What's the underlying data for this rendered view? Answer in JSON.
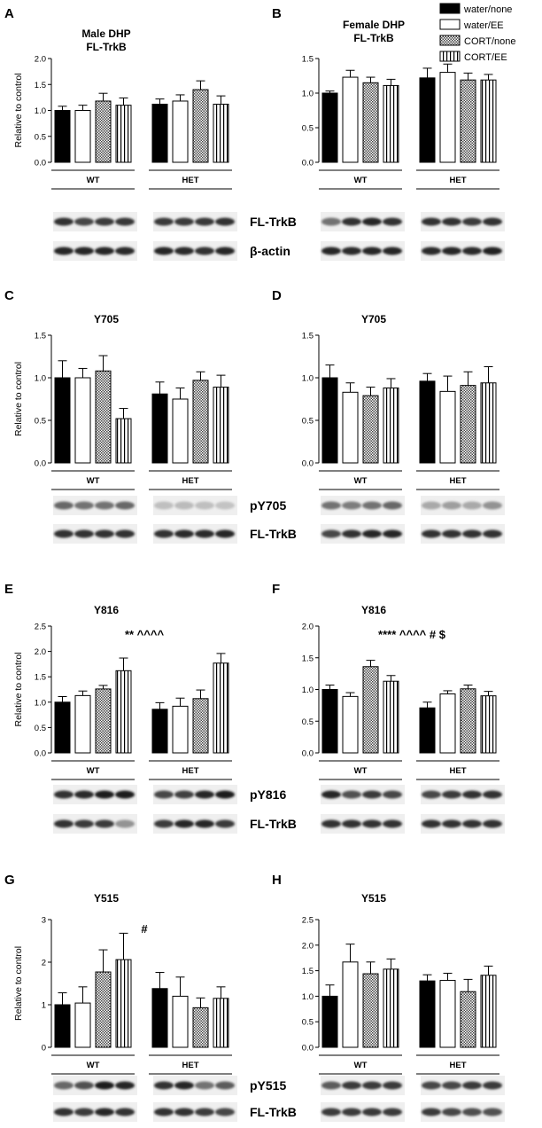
{
  "legend": {
    "items": [
      {
        "label": "water/none",
        "pattern": "solid"
      },
      {
        "label": "water/EE",
        "pattern": "open"
      },
      {
        "label": "CORT/none",
        "pattern": "check"
      },
      {
        "label": "CORT/EE",
        "pattern": "vstripe"
      }
    ]
  },
  "chart_data": [
    {
      "type": "bar",
      "panel": "A",
      "title_lines": [
        "Male DHP",
        "FL-TrkB"
      ],
      "ylabel": "Relative to control",
      "ylim": [
        0,
        2.0
      ],
      "yticks": [
        "0.0",
        "0.5",
        "1.0",
        "1.5",
        "2.0"
      ],
      "groups": [
        "WT",
        "HET"
      ],
      "series": [
        {
          "name": "water/none",
          "values": [
            1.0,
            1.12
          ],
          "errors": [
            0.08,
            0.1
          ]
        },
        {
          "name": "water/EE",
          "values": [
            1.0,
            1.18
          ],
          "errors": [
            0.1,
            0.12
          ]
        },
        {
          "name": "CORT/none",
          "values": [
            1.18,
            1.4
          ],
          "errors": [
            0.15,
            0.17
          ]
        },
        {
          "name": "CORT/EE",
          "values": [
            1.1,
            1.12
          ],
          "errors": [
            0.14,
            0.16
          ]
        }
      ],
      "annotation": "",
      "blot_labels": [
        "FL-TrkB",
        "β-actin"
      ]
    },
    {
      "type": "bar",
      "panel": "B",
      "title_lines": [
        "Female DHP",
        "FL-TrkB"
      ],
      "ylabel": "",
      "ylim": [
        0,
        1.5
      ],
      "yticks": [
        "0.0",
        "0.5",
        "1.0",
        "1.5"
      ],
      "groups": [
        "WT",
        "HET"
      ],
      "series": [
        {
          "name": "water/none",
          "values": [
            1.0,
            1.22
          ],
          "errors": [
            0.03,
            0.14
          ]
        },
        {
          "name": "water/EE",
          "values": [
            1.23,
            1.3
          ],
          "errors": [
            0.1,
            0.12
          ]
        },
        {
          "name": "CORT/none",
          "values": [
            1.15,
            1.19
          ],
          "errors": [
            0.08,
            0.1
          ]
        },
        {
          "name": "CORT/EE",
          "values": [
            1.11,
            1.19
          ],
          "errors": [
            0.09,
            0.08
          ]
        }
      ],
      "annotation": "",
      "blot_labels": []
    },
    {
      "type": "bar",
      "panel": "C",
      "title_lines": [
        "Y705"
      ],
      "ylabel": "Relative to control",
      "ylim": [
        0,
        1.5
      ],
      "yticks": [
        "0.0",
        "0.5",
        "1.0",
        "1.5"
      ],
      "groups": [
        "WT",
        "HET"
      ],
      "series": [
        {
          "name": "water/none",
          "values": [
            1.0,
            0.81
          ],
          "errors": [
            0.2,
            0.14
          ]
        },
        {
          "name": "water/EE",
          "values": [
            1.0,
            0.75
          ],
          "errors": [
            0.11,
            0.13
          ]
        },
        {
          "name": "CORT/none",
          "values": [
            1.08,
            0.97
          ],
          "errors": [
            0.18,
            0.1
          ]
        },
        {
          "name": "CORT/EE",
          "values": [
            0.52,
            0.89
          ],
          "errors": [
            0.12,
            0.14
          ]
        }
      ],
      "annotation": "",
      "blot_labels": [
        "pY705",
        "FL-TrkB"
      ]
    },
    {
      "type": "bar",
      "panel": "D",
      "title_lines": [
        "Y705"
      ],
      "ylabel": "",
      "ylim": [
        0,
        1.5
      ],
      "yticks": [
        "0.0",
        "0.5",
        "1.0",
        "1.5"
      ],
      "groups": [
        "WT",
        "HET"
      ],
      "series": [
        {
          "name": "water/none",
          "values": [
            1.0,
            0.96
          ],
          "errors": [
            0.15,
            0.09
          ]
        },
        {
          "name": "water/EE",
          "values": [
            0.83,
            0.84
          ],
          "errors": [
            0.11,
            0.18
          ]
        },
        {
          "name": "CORT/none",
          "values": [
            0.79,
            0.91
          ],
          "errors": [
            0.1,
            0.16
          ]
        },
        {
          "name": "CORT/EE",
          "values": [
            0.88,
            0.94
          ],
          "errors": [
            0.11,
            0.19
          ]
        }
      ],
      "annotation": "",
      "blot_labels": []
    },
    {
      "type": "bar",
      "panel": "E",
      "title_lines": [
        "Y816"
      ],
      "ylabel": "Relative to control",
      "ylim": [
        0,
        2.5
      ],
      "yticks": [
        "0.0",
        "0.5",
        "1.0",
        "1.5",
        "2.0",
        "2.5"
      ],
      "groups": [
        "WT",
        "HET"
      ],
      "series": [
        {
          "name": "water/none",
          "values": [
            1.0,
            0.86
          ],
          "errors": [
            0.11,
            0.13
          ]
        },
        {
          "name": "water/EE",
          "values": [
            1.13,
            0.92
          ],
          "errors": [
            0.09,
            0.16
          ]
        },
        {
          "name": "CORT/none",
          "values": [
            1.26,
            1.07
          ],
          "errors": [
            0.07,
            0.17
          ]
        },
        {
          "name": "CORT/EE",
          "values": [
            1.62,
            1.77
          ],
          "errors": [
            0.25,
            0.19
          ]
        }
      ],
      "annotation": "** ^^^^",
      "blot_labels": [
        "pY816",
        "FL-TrkB"
      ]
    },
    {
      "type": "bar",
      "panel": "F",
      "title_lines": [
        "Y816"
      ],
      "ylabel": "",
      "ylim": [
        0,
        2.0
      ],
      "yticks": [
        "0.0",
        "0.5",
        "1.0",
        "1.5",
        "2.0"
      ],
      "groups": [
        "WT",
        "HET"
      ],
      "series": [
        {
          "name": "water/none",
          "values": [
            1.0,
            0.71
          ],
          "errors": [
            0.07,
            0.09
          ]
        },
        {
          "name": "water/EE",
          "values": [
            0.89,
            0.93
          ],
          "errors": [
            0.06,
            0.05
          ]
        },
        {
          "name": "CORT/none",
          "values": [
            1.36,
            1.01
          ],
          "errors": [
            0.1,
            0.06
          ]
        },
        {
          "name": "CORT/EE",
          "values": [
            1.13,
            0.9
          ],
          "errors": [
            0.09,
            0.07
          ]
        }
      ],
      "annotation": "**** ^^^^  #  $",
      "blot_labels": []
    },
    {
      "type": "bar",
      "panel": "G",
      "title_lines": [
        "Y515"
      ],
      "ylabel": "Relative to control",
      "ylim": [
        0,
        3
      ],
      "yticks": [
        "0",
        "1",
        "2",
        "3"
      ],
      "groups": [
        "WT",
        "HET"
      ],
      "series": [
        {
          "name": "water/none",
          "values": [
            1.0,
            1.38
          ],
          "errors": [
            0.28,
            0.38
          ]
        },
        {
          "name": "water/EE",
          "values": [
            1.04,
            1.2
          ],
          "errors": [
            0.38,
            0.45
          ]
        },
        {
          "name": "CORT/none",
          "values": [
            1.77,
            0.93
          ],
          "errors": [
            0.52,
            0.23
          ]
        },
        {
          "name": "CORT/EE",
          "values": [
            2.06,
            1.15
          ],
          "errors": [
            0.62,
            0.27
          ]
        }
      ],
      "annotation": "#",
      "blot_labels": [
        "pY515",
        "FL-TrkB"
      ]
    },
    {
      "type": "bar",
      "panel": "H",
      "title_lines": [
        "Y515"
      ],
      "ylabel": "",
      "ylim": [
        0,
        2.5
      ],
      "yticks": [
        "0.0",
        "0.5",
        "1.0",
        "1.5",
        "2.0",
        "2.5"
      ],
      "groups": [
        "WT",
        "HET"
      ],
      "series": [
        {
          "name": "water/none",
          "values": [
            1.0,
            1.3
          ],
          "errors": [
            0.22,
            0.12
          ]
        },
        {
          "name": "water/EE",
          "values": [
            1.67,
            1.31
          ],
          "errors": [
            0.35,
            0.14
          ]
        },
        {
          "name": "CORT/none",
          "values": [
            1.44,
            1.09
          ],
          "errors": [
            0.23,
            0.24
          ]
        },
        {
          "name": "CORT/EE",
          "values": [
            1.53,
            1.41
          ],
          "errors": [
            0.2,
            0.18
          ]
        }
      ],
      "annotation": "",
      "blot_labels": []
    }
  ]
}
